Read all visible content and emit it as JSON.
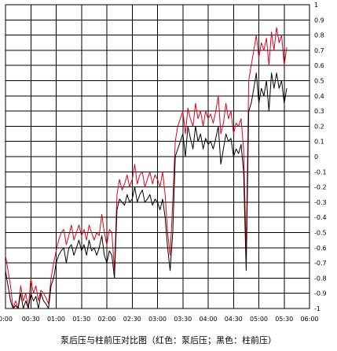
{
  "chart_data": {
    "type": "line",
    "title": "泵后压与柱前压对比图（红色：泵后压；黑色：柱前压）",
    "xlabel": "",
    "ylabel": "",
    "x_ticks": [
      "0:00",
      "00:30",
      "01:00",
      "01:30",
      "02:00",
      "02:30",
      "03:00",
      "03:30",
      "04:00",
      "04:30",
      "05:00",
      "05:30",
      "06:00"
    ],
    "x_range_minutes": [
      0,
      360
    ],
    "ylim": [
      -1,
      1
    ],
    "y_ticks": [
      "-1",
      "-0.9",
      "-0.8",
      "-0.7",
      "-0.6",
      "-0.5",
      "-0.4",
      "-0.3",
      "-0.2",
      "-0.1",
      "0",
      "0.1",
      "0.2",
      "0.3",
      "0.4",
      "0.5",
      "0.6",
      "0.7",
      "0.8",
      "0.9",
      "1"
    ],
    "y_axis_side": "right",
    "grid": true,
    "legend": "none",
    "series": [
      {
        "color": "#e0001b",
        "x": [
          0,
          3,
          6,
          9,
          12,
          15,
          18,
          21,
          24,
          27,
          30,
          33,
          36,
          39,
          42,
          45,
          48,
          51,
          54,
          57,
          60,
          63,
          66,
          69,
          72,
          75,
          78,
          81,
          84,
          87,
          90,
          93,
          96,
          99,
          102,
          105,
          108,
          111,
          114,
          117,
          120,
          123,
          126,
          129,
          132,
          135,
          138,
          141,
          144,
          147,
          150,
          153,
          156,
          159,
          162,
          165,
          168,
          171,
          174,
          177,
          180,
          183,
          186,
          189,
          192,
          195,
          198,
          201,
          204,
          207,
          210,
          213,
          216,
          219,
          222,
          225,
          228,
          231,
          234,
          237,
          240,
          243,
          246,
          249,
          252,
          255,
          258,
          261,
          264,
          267,
          270,
          273,
          276,
          279,
          282,
          285,
          288,
          291,
          294,
          297,
          300,
          303,
          306,
          309,
          312,
          315,
          318,
          321,
          324,
          327,
          330,
          333
        ],
        "y": [
          -0.65,
          -0.75,
          -0.85,
          -1.0,
          -0.95,
          -1.0,
          -0.85,
          -0.95,
          -0.9,
          -1.0,
          -0.8,
          -0.9,
          -0.85,
          -0.95,
          -0.88,
          -0.9,
          -0.93,
          -0.97,
          -0.8,
          -0.7,
          -0.62,
          -0.55,
          -0.5,
          -0.48,
          -0.58,
          -0.52,
          -0.45,
          -0.55,
          -0.5,
          -0.45,
          -0.52,
          -0.48,
          -0.55,
          -0.45,
          -0.5,
          -0.55,
          -0.5,
          -0.52,
          -0.38,
          -0.5,
          -0.58,
          -0.48,
          -0.5,
          -0.75,
          -0.25,
          -0.15,
          -0.22,
          -0.18,
          -0.12,
          -0.2,
          -0.15,
          -0.05,
          -0.18,
          -0.12,
          -0.1,
          -0.2,
          -0.15,
          -0.1,
          -0.18,
          -0.12,
          -0.15,
          -0.2,
          -0.1,
          -0.25,
          -0.5,
          -0.65,
          -0.3,
          0.1,
          0.2,
          0.25,
          0.3,
          0.15,
          0.32,
          0.25,
          0.2,
          0.35,
          0.25,
          0.3,
          0.2,
          0.3,
          0.25,
          0.28,
          0.22,
          0.3,
          0.4,
          0.15,
          0.22,
          0.35,
          0.25,
          0.3,
          0.15,
          0.22,
          0.2,
          0.25,
          0.05,
          -0.62,
          0.5,
          0.6,
          0.7,
          0.8,
          0.65,
          0.75,
          0.7,
          0.78,
          0.6,
          0.82,
          0.7,
          0.85,
          0.75,
          0.8,
          0.6,
          0.72
        ]
      },
      {
        "color": "#000000",
        "x": [
          0,
          3,
          6,
          9,
          12,
          15,
          18,
          21,
          24,
          27,
          30,
          33,
          36,
          39,
          42,
          45,
          48,
          51,
          54,
          57,
          60,
          63,
          66,
          69,
          72,
          75,
          78,
          81,
          84,
          87,
          90,
          93,
          96,
          99,
          102,
          105,
          108,
          111,
          114,
          117,
          120,
          123,
          126,
          129,
          132,
          135,
          138,
          141,
          144,
          147,
          150,
          153,
          156,
          159,
          162,
          165,
          168,
          171,
          174,
          177,
          180,
          183,
          186,
          189,
          192,
          195,
          198,
          201,
          204,
          207,
          210,
          213,
          216,
          219,
          222,
          225,
          228,
          231,
          234,
          237,
          240,
          243,
          246,
          249,
          252,
          255,
          258,
          261,
          264,
          267,
          270,
          273,
          276,
          279,
          282,
          285,
          288,
          291,
          294,
          297,
          300,
          303,
          306,
          309,
          312,
          315,
          318,
          321,
          324,
          327,
          330,
          333
        ],
        "y": [
          -0.75,
          -0.85,
          -0.95,
          -1.0,
          -0.98,
          -1.0,
          -0.9,
          -1.0,
          -0.95,
          -1.0,
          -0.9,
          -0.95,
          -0.92,
          -1.0,
          -0.9,
          -0.95,
          -0.97,
          -1.0,
          -0.85,
          -0.8,
          -0.7,
          -0.65,
          -0.62,
          -0.6,
          -0.7,
          -0.6,
          -0.58,
          -0.65,
          -0.6,
          -0.55,
          -0.62,
          -0.58,
          -0.65,
          -0.55,
          -0.62,
          -0.6,
          -0.65,
          -0.6,
          -0.52,
          -0.65,
          -0.7,
          -0.62,
          -0.65,
          -0.8,
          -0.35,
          -0.28,
          -0.3,
          -0.32,
          -0.25,
          -0.3,
          -0.28,
          -0.2,
          -0.3,
          -0.25,
          -0.22,
          -0.3,
          -0.28,
          -0.25,
          -0.32,
          -0.28,
          -0.3,
          -0.35,
          -0.28,
          -0.4,
          -0.6,
          -0.75,
          -0.5,
          0.0,
          0.05,
          0.1,
          0.15,
          0.0,
          0.2,
          0.12,
          0.05,
          0.2,
          0.1,
          0.15,
          0.05,
          0.12,
          0.08,
          0.1,
          0.05,
          0.12,
          0.2,
          -0.05,
          0.05,
          0.15,
          0.1,
          0.12,
          0.0,
          0.05,
          0.02,
          0.08,
          -0.1,
          -0.75,
          0.3,
          0.35,
          0.45,
          0.55,
          0.35,
          0.45,
          0.4,
          0.5,
          0.3,
          0.55,
          0.45,
          0.55,
          0.45,
          0.5,
          0.35,
          0.45
        ]
      }
    ],
    "colors": {
      "grid": "#000000",
      "background": "#ffffff"
    }
  }
}
